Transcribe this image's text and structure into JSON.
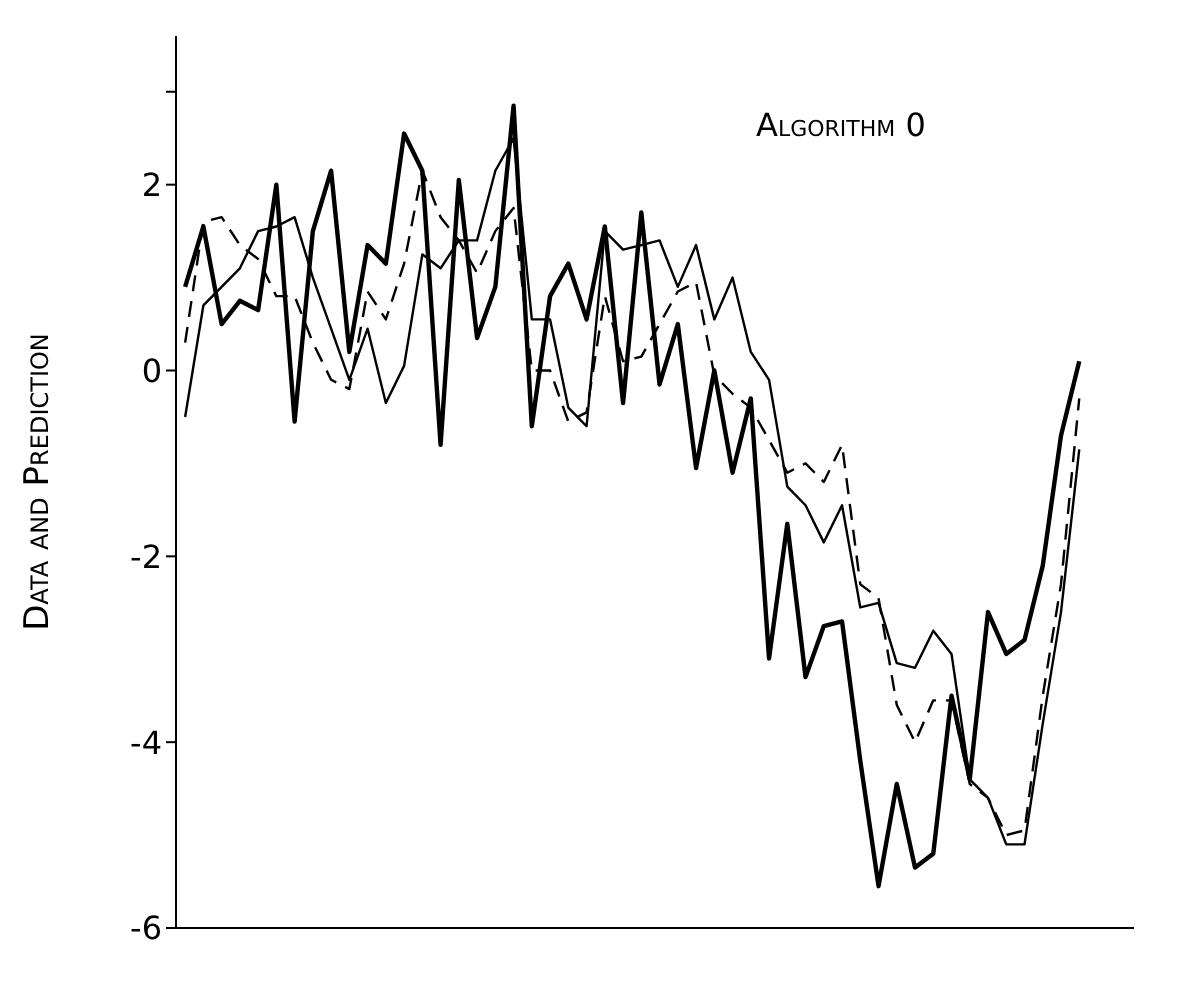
{
  "chart_data": {
    "type": "line",
    "title": "Algorithm 0",
    "ylabel": "Data and Prediction",
    "categories": [
      null,
      null,
      null,
      null,
      null,
      null,
      null,
      null,
      null,
      null,
      null,
      null,
      null,
      null,
      null,
      null,
      null,
      null,
      null,
      null,
      null,
      null,
      null,
      null,
      null,
      null,
      null,
      null,
      null,
      null,
      null,
      null,
      null,
      null,
      null,
      null,
      null,
      null,
      null,
      null,
      null,
      null,
      null,
      null,
      null,
      null,
      null,
      null,
      null,
      null
    ],
    "ylim": [
      -6,
      3.6
    ],
    "yticks": [
      -6,
      -4,
      -2,
      0,
      2,
      {
        "value": 3,
        "label": null
      }
    ],
    "tick_labels": "y",
    "grid": false,
    "marker": "none",
    "series": [
      {
        "color": "#000000",
        "line_style": "solid",
        "values": [
          0.9,
          1.55,
          0.5,
          0.75,
          0.65,
          2.0,
          -0.55,
          1.5,
          2.15,
          0.2,
          1.35,
          1.15,
          2.55,
          2.15,
          -0.8,
          2.05,
          0.35,
          0.9,
          2.85,
          -0.6,
          0.8,
          1.15,
          0.55,
          1.55,
          -0.35,
          1.7,
          -0.15,
          0.5,
          -1.05,
          0.0,
          -1.1,
          -0.3,
          -3.1,
          -1.65,
          -3.3,
          -2.75,
          -2.7,
          -4.2,
          -5.55,
          -4.45,
          -5.35,
          -5.2,
          -3.5,
          -4.4,
          -2.6,
          -3.05,
          -2.9,
          -2.1,
          -0.7,
          0.1
        ]
      },
      {
        "color": "#000000",
        "line_style": "solid",
        "values": [
          -0.5,
          0.7,
          0.9,
          1.1,
          1.5,
          1.55,
          1.65,
          1.0,
          0.45,
          -0.1,
          0.45,
          -0.35,
          0.05,
          1.25,
          1.1,
          1.4,
          1.4,
          2.15,
          2.5,
          0.55,
          0.55,
          -0.4,
          -0.6,
          1.5,
          1.3,
          1.35,
          1.4,
          0.9,
          1.35,
          0.55,
          1.0,
          0.2,
          -0.1,
          -1.25,
          -1.45,
          -1.85,
          -1.45,
          -2.55,
          -2.5,
          -3.15,
          -3.2,
          -2.8,
          -3.05,
          -4.4,
          -4.6,
          -5.1,
          -5.1,
          -3.8,
          -2.6,
          -0.85
        ]
      },
      {
        "color": "#000000",
        "line_style": "dashed",
        "values": [
          0.3,
          1.6,
          1.65,
          1.35,
          1.2,
          0.8,
          0.8,
          0.3,
          -0.1,
          -0.2,
          0.85,
          0.55,
          1.15,
          2.15,
          1.65,
          1.4,
          1.05,
          1.5,
          1.75,
          0.0,
          0.0,
          -0.55,
          -0.45,
          0.8,
          0.1,
          0.15,
          0.5,
          0.85,
          0.95,
          -0.05,
          -0.25,
          -0.4,
          -0.75,
          -1.1,
          -1.0,
          -1.2,
          -0.8,
          -2.3,
          -2.45,
          -3.6,
          -4.0,
          -3.55,
          -3.55,
          -4.45,
          -4.6,
          -5.0,
          -4.95,
          -3.5,
          -2.3,
          -0.3
        ]
      }
    ]
  }
}
